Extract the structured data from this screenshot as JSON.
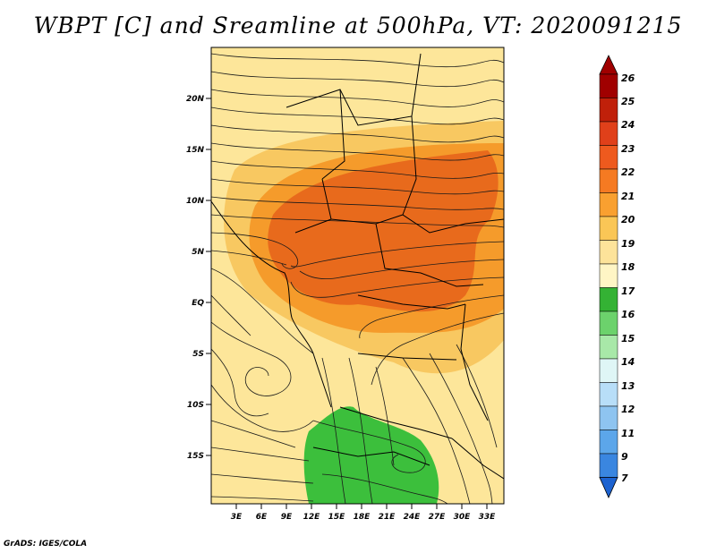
{
  "title": "WBPT [C] and Sreamline at 500hPa, VT: 2020091215",
  "credit": "GrADS: IGES/COLA",
  "map": {
    "lat_labels": [
      "20N",
      "15N",
      "10N",
      "5N",
      "EQ",
      "5S",
      "10S",
      "15S"
    ],
    "lon_labels": [
      "3E",
      "6E",
      "9E",
      "12E",
      "15E",
      "18E",
      "21E",
      "24E",
      "27E",
      "30E",
      "33E"
    ],
    "regions": [
      {
        "name": "warm-core-22-24",
        "color": "#e86a1c"
      },
      {
        "name": "band-21-22",
        "color": "#f59b2b"
      },
      {
        "name": "band-20-21",
        "color": "#f8c861"
      },
      {
        "name": "band-19-20",
        "color": "#fde69a"
      },
      {
        "name": "cool-17-18",
        "color": "#3cbf3c"
      }
    ]
  },
  "legend": {
    "levels": [
      "26",
      "25",
      "24",
      "23",
      "22",
      "21",
      "20",
      "19",
      "18",
      "17",
      "16",
      "15",
      "14",
      "13",
      "12",
      "11",
      "9",
      "7"
    ],
    "colors": [
      "#a00000",
      "#c0200a",
      "#e0401a",
      "#ee5a1e",
      "#f57a22",
      "#f9a030",
      "#fac656",
      "#fde39a",
      "#fff5c5",
      "#34b234",
      "#6cd26c",
      "#a8e8a8",
      "#dff6f6",
      "#b8def8",
      "#8ec4f0",
      "#5ca6ea",
      "#3a86e0",
      "#1c62d0"
    ]
  }
}
